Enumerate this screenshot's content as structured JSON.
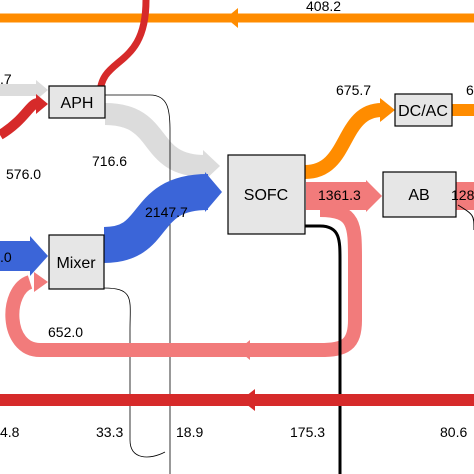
{
  "nodes": {
    "aph": "APH",
    "mixer": "Mixer",
    "sofc": "SOFC",
    "dcac": "DC/AC",
    "ab": "AB"
  },
  "flows": {
    "top_orange": "408.2",
    "air_in_partial": ".7",
    "aph_to_sofc": "716.6",
    "red_left_in": "576.0",
    "fuel_in_partial": ".0",
    "mixer_to_sofc": "2147.7",
    "sofc_to_dcac": "675.7",
    "dcac_out_partial": "6",
    "sofc_to_ab": "1361.3",
    "ab_out_partial": "128",
    "recycle": "652.0",
    "bottom_left_partial": "4.8",
    "mixer_loss": "33.3",
    "aph_loss": "18.9",
    "sofc_loss": "175.3",
    "ab_loss_partial": "80.6"
  },
  "colors": {
    "orange": "#ff8c00",
    "red": "#d62a2a",
    "salmon": "#f27b7b",
    "blue": "#3b65d8",
    "gray": "#dcdcdc"
  }
}
